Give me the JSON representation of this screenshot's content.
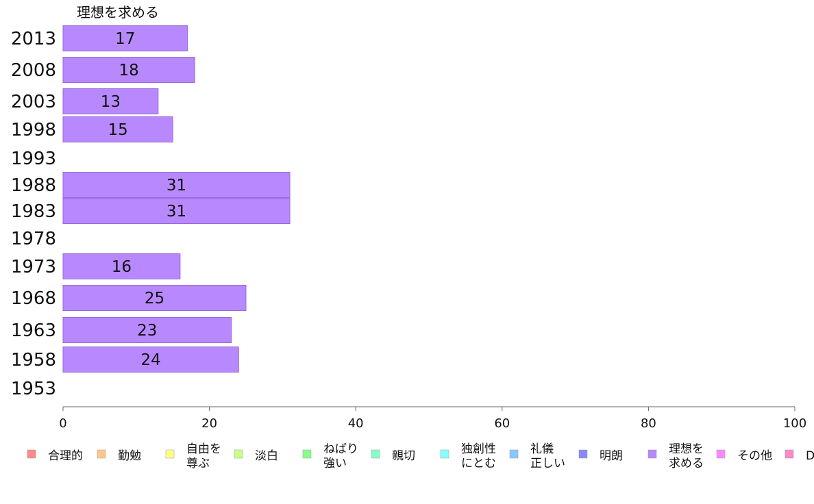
{
  "chart_data": {
    "type": "bar",
    "orientation": "horizontal",
    "title": "理想を求める",
    "categories": [
      "2013",
      "2008",
      "2003",
      "1998",
      "1993",
      "1988",
      "1983",
      "1978",
      "1973",
      "1968",
      "1963",
      "1958",
      "1953"
    ],
    "series": [
      {
        "name": "理想を求める",
        "color": "#b888ff",
        "values": [
          17,
          18,
          13,
          15,
          null,
          31,
          31,
          null,
          16,
          25,
          23,
          24,
          null
        ]
      }
    ],
    "xlim": [
      0,
      100
    ],
    "xticks": [
      0,
      20,
      40,
      60,
      80,
      100
    ],
    "grid": false,
    "legend": {
      "placement": "bottom",
      "items": [
        {
          "label": "合理的",
          "color": "#ff8888"
        },
        {
          "label": "勤勉",
          "color": "#ffc888"
        },
        {
          "label": "自由を\n尊ぶ",
          "color": "#ffff88"
        },
        {
          "label": "淡白",
          "color": "#c8ff88"
        },
        {
          "label": "ねばり\n強い",
          "color": "#88ff88"
        },
        {
          "label": "親切",
          "color": "#88ffc8"
        },
        {
          "label": "独創性\nにとむ",
          "color": "#88ffff"
        },
        {
          "label": "礼儀\n正しい",
          "color": "#88c8ff"
        },
        {
          "label": "明朗",
          "color": "#8888ff"
        },
        {
          "label": "理想を\n求める",
          "color": "#b888ff"
        },
        {
          "label": "その他",
          "color": "#ff88ff"
        },
        {
          "label": "D",
          "color": "#ff88c8"
        }
      ]
    }
  }
}
